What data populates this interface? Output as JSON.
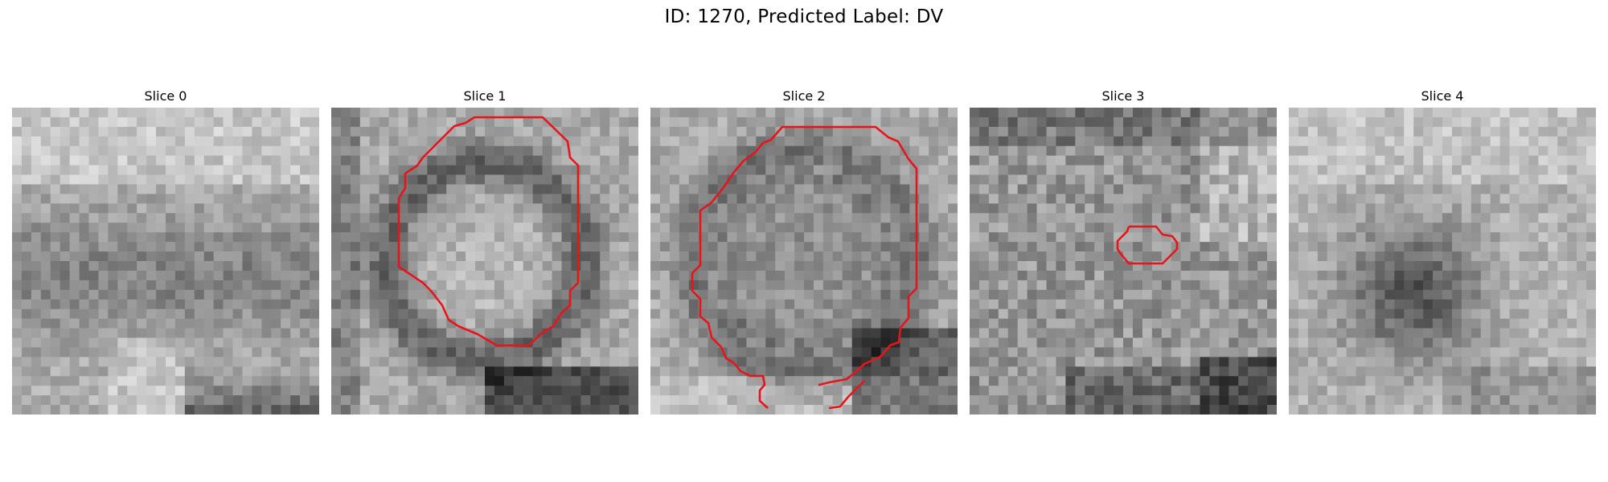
{
  "figure": {
    "title": "ID: 1270, Predicted Label: DV"
  },
  "slices": [
    {
      "title": "Slice 0",
      "has_contour": false,
      "contour_color": "#e8141c"
    },
    {
      "title": "Slice 1",
      "has_contour": true,
      "contour_color": "#e8141c"
    },
    {
      "title": "Slice 2",
      "has_contour": true,
      "contour_color": "#e8141c"
    },
    {
      "title": "Slice 3",
      "has_contour": true,
      "contour_color": "#e8141c"
    },
    {
      "title": "Slice 4",
      "has_contour": false,
      "contour_color": "#e8141c"
    }
  ],
  "image": {
    "colormap": "gray",
    "grid_size": 32
  }
}
